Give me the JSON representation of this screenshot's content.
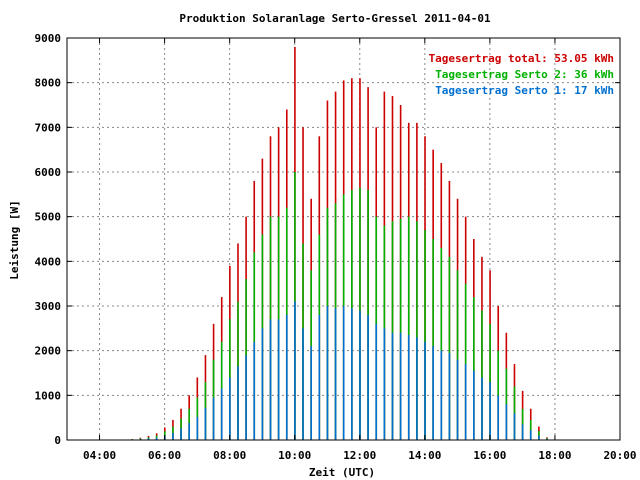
{
  "chart_data": {
    "type": "bar",
    "title": "Produktion Solaranlage Serto-Gressel 2011-04-01",
    "xlabel": "Zeit (UTC)",
    "ylabel": "Leistung [W]",
    "xlim": [
      3.0,
      20.0
    ],
    "ylim": [
      0,
      9000
    ],
    "x_ticks": [
      "04:00",
      "06:00",
      "08:00",
      "10:00",
      "12:00",
      "14:00",
      "16:00",
      "18:00",
      "20:00"
    ],
    "y_ticks": [
      "0",
      "1000",
      "2000",
      "3000",
      "4000",
      "5000",
      "6000",
      "7000",
      "8000",
      "9000"
    ],
    "grid": true,
    "legend_position": "top-right",
    "colors": {
      "total": "#cc0000",
      "serto2": "#00b000",
      "serto1": "#0070d0",
      "grid": "#888888"
    },
    "legend": [
      {
        "label": "Tagesertrag total: 53.05 kWh",
        "color": "#cc0000"
      },
      {
        "label": "Tagesertrag Serto 2: 36 kWh",
        "color": "#00b000"
      },
      {
        "label": "Tagesertrag Serto 1: 17 kWh",
        "color": "#0070d0"
      }
    ],
    "series": [
      {
        "name": "total",
        "x": [
          5.0,
          5.25,
          5.5,
          5.75,
          6.0,
          6.25,
          6.5,
          6.75,
          7.0,
          7.25,
          7.5,
          7.75,
          8.0,
          8.25,
          8.5,
          8.75,
          9.0,
          9.25,
          9.5,
          9.75,
          10.0,
          10.25,
          10.5,
          10.75,
          11.0,
          11.25,
          11.5,
          11.75,
          12.0,
          12.25,
          12.5,
          12.75,
          13.0,
          13.25,
          13.5,
          13.75,
          14.0,
          14.25,
          14.5,
          14.75,
          15.0,
          15.25,
          15.5,
          15.75,
          16.0,
          16.25,
          16.5,
          16.75,
          17.0,
          17.25,
          17.5,
          17.75
        ],
        "values": [
          20,
          50,
          90,
          150,
          280,
          450,
          700,
          1000,
          1400,
          1900,
          2600,
          3200,
          3900,
          4400,
          5000,
          5800,
          6300,
          6800,
          7000,
          7400,
          8800,
          7000,
          5400,
          6800,
          7600,
          7800,
          8050,
          8100,
          8100,
          7900,
          7000,
          7800,
          7700,
          7500,
          7100,
          7100,
          6800,
          6500,
          6200,
          5800,
          5400,
          5000,
          4500,
          4100,
          3800,
          3000,
          2400,
          1700,
          1100,
          700,
          300,
          60
        ]
      },
      {
        "name": "serto2",
        "x": [
          5.0,
          5.25,
          5.5,
          5.75,
          6.0,
          6.25,
          6.5,
          6.75,
          7.0,
          7.25,
          7.5,
          7.75,
          8.0,
          8.25,
          8.5,
          8.75,
          9.0,
          9.25,
          9.5,
          9.75,
          10.0,
          10.25,
          10.5,
          10.75,
          11.0,
          11.25,
          11.5,
          11.75,
          12.0,
          12.25,
          12.5,
          12.75,
          13.0,
          13.25,
          13.5,
          13.75,
          14.0,
          14.25,
          14.5,
          14.75,
          15.0,
          15.25,
          15.5,
          15.75,
          16.0,
          16.25,
          16.5,
          16.75,
          17.0,
          17.25,
          17.5,
          17.75
        ],
        "values": [
          15,
          35,
          60,
          100,
          190,
          300,
          480,
          700,
          950,
          1300,
          1800,
          2200,
          2700,
          3100,
          3600,
          4200,
          4600,
          5000,
          5000,
          5200,
          6000,
          4400,
          3800,
          4600,
          5200,
          5300,
          5500,
          5600,
          5650,
          5600,
          5000,
          4800,
          4900,
          4950,
          5000,
          4900,
          4700,
          4500,
          4300,
          4100,
          3800,
          3500,
          3200,
          2900,
          2600,
          2000,
          1600,
          1200,
          700,
          450,
          200,
          40
        ]
      },
      {
        "name": "serto1",
        "x": [
          5.0,
          5.25,
          5.5,
          5.75,
          6.0,
          6.25,
          6.5,
          6.75,
          7.0,
          7.25,
          7.5,
          7.75,
          8.0,
          8.25,
          8.5,
          8.75,
          9.0,
          9.25,
          9.5,
          9.75,
          10.0,
          10.25,
          10.5,
          10.75,
          11.0,
          11.25,
          11.5,
          11.75,
          12.0,
          12.25,
          12.5,
          12.75,
          13.0,
          13.25,
          13.5,
          13.75,
          14.0,
          14.25,
          14.5,
          14.75,
          15.0,
          15.25,
          15.5,
          15.75,
          16.0,
          16.25,
          16.5,
          16.75,
          17.0,
          17.25,
          17.5,
          17.75
        ],
        "values": [
          8,
          18,
          35,
          55,
          100,
          160,
          260,
          380,
          520,
          720,
          950,
          1150,
          1400,
          1650,
          1900,
          2200,
          2500,
          2700,
          2700,
          2800,
          3100,
          2500,
          2100,
          2800,
          3000,
          2950,
          3000,
          2950,
          2900,
          2800,
          2600,
          2500,
          2400,
          2400,
          2350,
          2300,
          2200,
          2100,
          2000,
          1950,
          1800,
          1700,
          1550,
          1400,
          1300,
          1000,
          800,
          600,
          350,
          220,
          100,
          20
        ]
      }
    ]
  }
}
